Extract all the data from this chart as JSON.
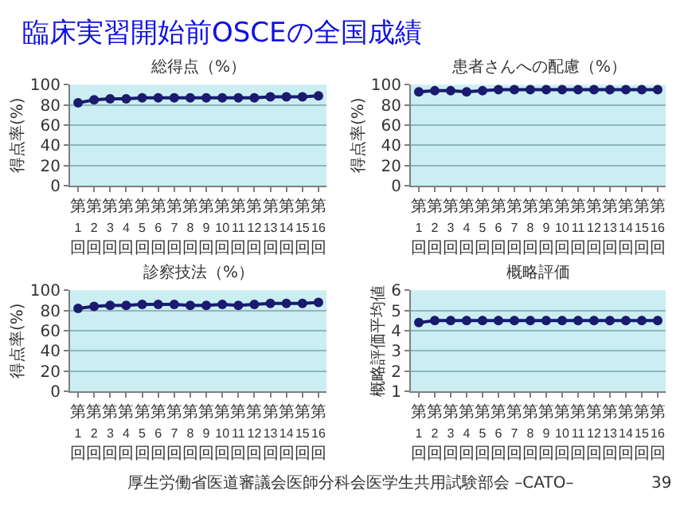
{
  "chart_data": [
    {
      "type": "line",
      "title": "総得点（%）",
      "ylabel": "得点率(%)",
      "categories": [
        "第1回",
        "第2回",
        "第3回",
        "第4回",
        "第5回",
        "第6回",
        "第7回",
        "第8回",
        "第9回",
        "第10回",
        "第11回",
        "第12回",
        "第13回",
        "第14回",
        "第15回",
        "第16回"
      ],
      "series": [
        {
          "color": "#1a1a6e",
          "values": [
            82,
            85,
            86,
            86,
            87,
            87,
            87,
            87,
            87,
            87,
            87,
            87,
            88,
            88,
            88,
            89
          ]
        }
      ],
      "ylim": [
        0,
        100
      ],
      "yticks": [
        0,
        20,
        40,
        60,
        80,
        100
      ],
      "grid": "y",
      "marker": "circle",
      "line_style": "solid",
      "annotations": [
        "臨床実習開始前OSCEの全国成績",
        "厚生労働省医道審議会医師分科会医学生共用試験部会 –CATO–",
        "39"
      ]
    },
    {
      "type": "line",
      "title": "患者さんへの配慮（%）",
      "ylabel": "得点率(%)",
      "categories": [
        "第1回",
        "第2回",
        "第3回",
        "第4回",
        "第5回",
        "第6回",
        "第7回",
        "第8回",
        "第9回",
        "第10回",
        "第11回",
        "第12回",
        "第13回",
        "第14回",
        "第15回",
        "第16回"
      ],
      "series": [
        {
          "color": "#1a1a6e",
          "values": [
            93,
            94,
            94,
            93,
            94,
            95,
            95,
            95,
            95,
            95,
            95,
            95,
            95,
            95,
            95,
            95
          ]
        }
      ],
      "ylim": [
        0,
        100
      ],
      "yticks": [
        0,
        20,
        40,
        60,
        80,
        100
      ],
      "grid": "y",
      "marker": "circle",
      "line_style": "solid"
    },
    {
      "type": "line",
      "title": "診察技法（%）",
      "ylabel": "得点率(%)",
      "categories": [
        "第1回",
        "第2回",
        "第3回",
        "第4回",
        "第5回",
        "第6回",
        "第7回",
        "第8回",
        "第9回",
        "第10回",
        "第11回",
        "第12回",
        "第13回",
        "第14回",
        "第15回",
        "第16回"
      ],
      "series": [
        {
          "color": "#1a1a6e",
          "values": [
            82,
            84,
            85,
            85,
            86,
            86,
            86,
            85,
            85,
            86,
            85,
            86,
            87,
            87,
            87,
            88
          ]
        }
      ],
      "ylim": [
        0,
        100
      ],
      "yticks": [
        0,
        20,
        40,
        60,
        80,
        100
      ],
      "grid": "y",
      "marker": "circle",
      "line_style": "solid"
    },
    {
      "type": "line",
      "title": "概略評価",
      "ylabel": "概略評価平均値",
      "categories": [
        "第1回",
        "第2回",
        "第3回",
        "第4回",
        "第5回",
        "第6回",
        "第7回",
        "第8回",
        "第9回",
        "第10回",
        "第11回",
        "第12回",
        "第13回",
        "第14回",
        "第15回",
        "第16回"
      ],
      "series": [
        {
          "color": "#1a1a6e",
          "values": [
            4.4,
            4.5,
            4.5,
            4.5,
            4.5,
            4.5,
            4.5,
            4.5,
            4.5,
            4.5,
            4.5,
            4.5,
            4.5,
            4.5,
            4.5,
            4.5
          ]
        }
      ],
      "ylim": [
        1,
        6
      ],
      "yticks": [
        1,
        2,
        3,
        4,
        5,
        6
      ],
      "grid": "y",
      "marker": "circle",
      "line_style": "solid"
    }
  ]
}
